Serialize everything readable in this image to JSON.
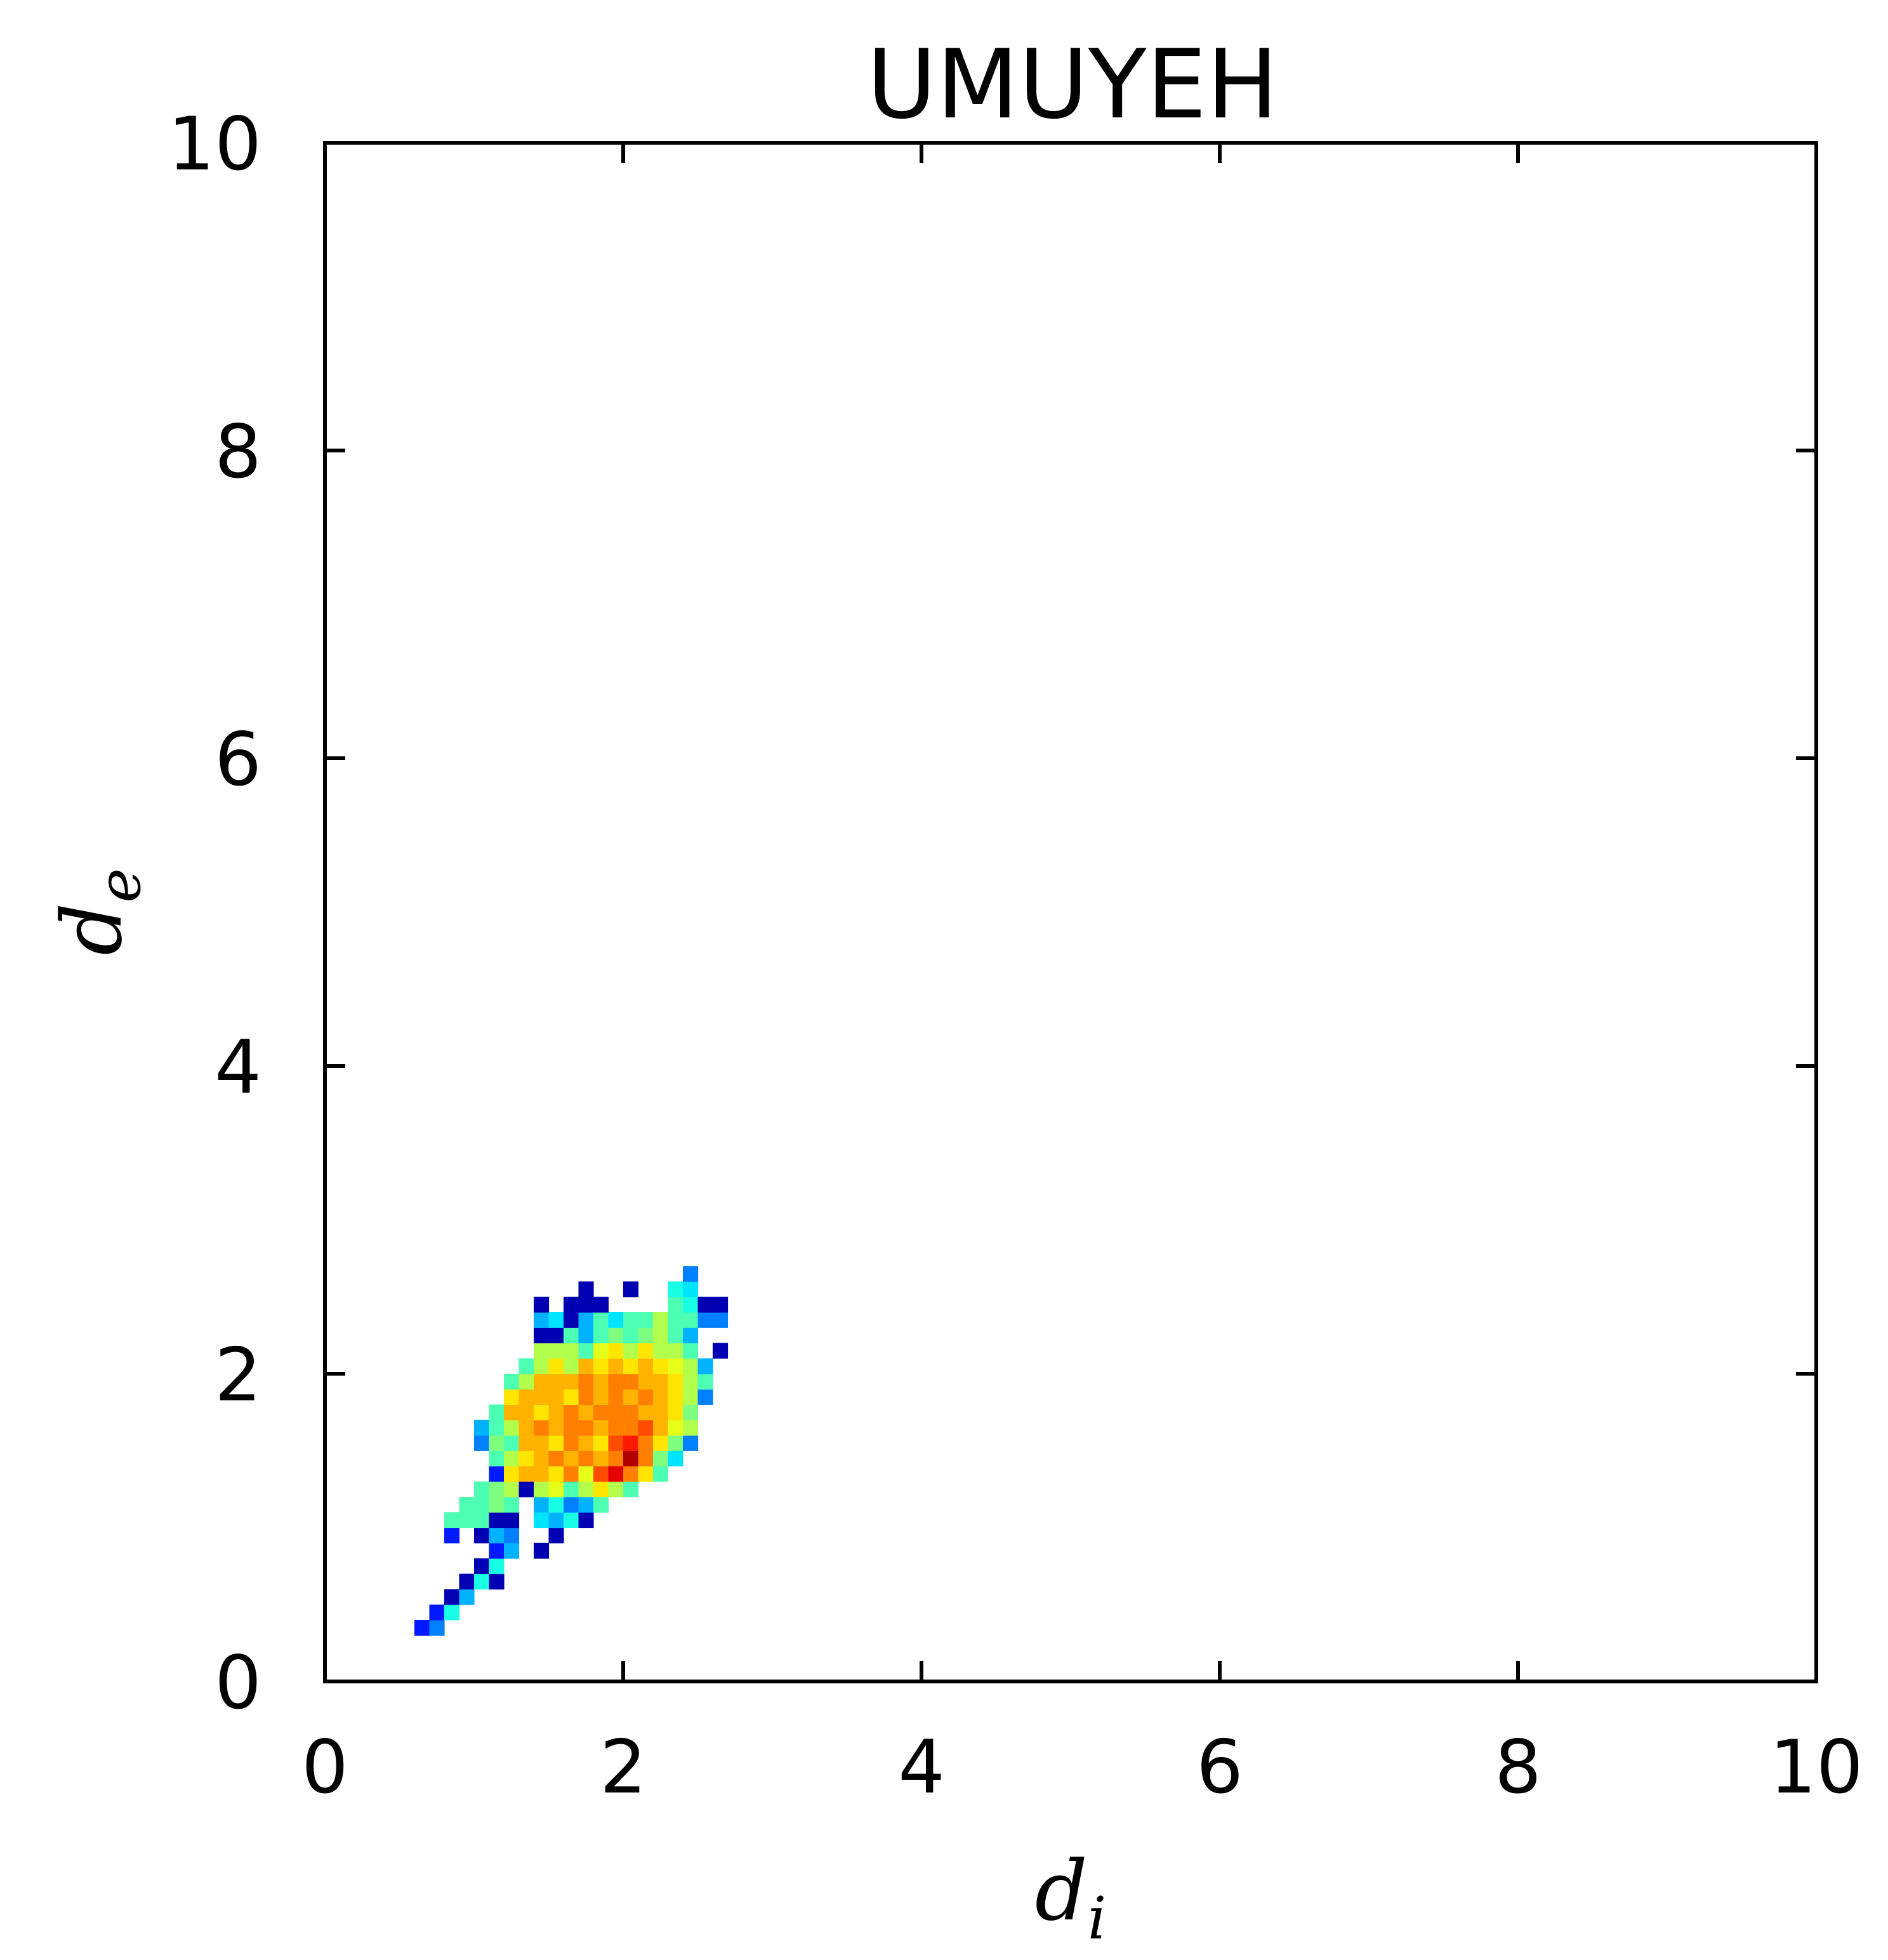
{
  "chart_data": {
    "type": "heatmap",
    "title": "UMUYEH",
    "xlabel": {
      "base": "d",
      "sub": "i"
    },
    "ylabel": {
      "base": "d",
      "sub": "e"
    },
    "xlim": [
      0,
      10
    ],
    "ylim": [
      0,
      10
    ],
    "xticks": [
      "0",
      "2",
      "4",
      "6",
      "8",
      "10"
    ],
    "yticks": [
      "0",
      "2",
      "4",
      "6",
      "8",
      "10"
    ],
    "grid": false,
    "bin_size": 0.1,
    "colormap": [
      "#00007f",
      "#0000ff",
      "#007fff",
      "#00ffff",
      "#7fff7f",
      "#ffff00",
      "#ff7f00",
      "#ff0000",
      "#7f0000"
    ],
    "cells": [
      {
        "x": 0.6,
        "y": 0.3,
        "v": 0.15
      },
      {
        "x": 0.7,
        "y": 0.3,
        "v": 0.25
      },
      {
        "x": 0.7,
        "y": 0.4,
        "v": 0.15
      },
      {
        "x": 0.8,
        "y": 0.4,
        "v": 0.4
      },
      {
        "x": 0.8,
        "y": 0.5,
        "v": 0.05
      },
      {
        "x": 0.9,
        "y": 0.5,
        "v": 0.3
      },
      {
        "x": 0.9,
        "y": 0.6,
        "v": 0.05
      },
      {
        "x": 1.0,
        "y": 0.6,
        "v": 0.4
      },
      {
        "x": 1.1,
        "y": 0.6,
        "v": 0.05
      },
      {
        "x": 1.0,
        "y": 0.7,
        "v": 0.05
      },
      {
        "x": 1.1,
        "y": 0.7,
        "v": 0.4
      },
      {
        "x": 1.1,
        "y": 0.8,
        "v": 0.15
      },
      {
        "x": 1.2,
        "y": 0.8,
        "v": 0.3
      },
      {
        "x": 1.4,
        "y": 0.8,
        "v": 0.05
      },
      {
        "x": 0.8,
        "y": 0.9,
        "v": 0.15
      },
      {
        "x": 1.0,
        "y": 0.9,
        "v": 0.05
      },
      {
        "x": 1.1,
        "y": 0.9,
        "v": 0.3
      },
      {
        "x": 1.2,
        "y": 0.9,
        "v": 0.25
      },
      {
        "x": 1.5,
        "y": 0.9,
        "v": 0.05
      },
      {
        "x": 0.8,
        "y": 1.0,
        "v": 0.45
      },
      {
        "x": 0.9,
        "y": 1.0,
        "v": 0.45
      },
      {
        "x": 1.0,
        "y": 1.0,
        "v": 0.45
      },
      {
        "x": 1.1,
        "y": 1.0,
        "v": 0.05
      },
      {
        "x": 1.2,
        "y": 1.0,
        "v": 0.05
      },
      {
        "x": 1.4,
        "y": 1.0,
        "v": 0.35
      },
      {
        "x": 1.5,
        "y": 1.0,
        "v": 0.3
      },
      {
        "x": 1.6,
        "y": 1.0,
        "v": 0.4
      },
      {
        "x": 1.7,
        "y": 1.0,
        "v": 0.05
      },
      {
        "x": 0.9,
        "y": 1.1,
        "v": 0.45
      },
      {
        "x": 1.0,
        "y": 1.1,
        "v": 0.45
      },
      {
        "x": 1.1,
        "y": 1.1,
        "v": 0.5
      },
      {
        "x": 1.2,
        "y": 1.1,
        "v": 0.45
      },
      {
        "x": 1.4,
        "y": 1.1,
        "v": 0.3
      },
      {
        "x": 1.5,
        "y": 1.1,
        "v": 0.4
      },
      {
        "x": 1.6,
        "y": 1.1,
        "v": 0.25
      },
      {
        "x": 1.7,
        "y": 1.1,
        "v": 0.3
      },
      {
        "x": 1.8,
        "y": 1.1,
        "v": 0.45
      },
      {
        "x": 1.0,
        "y": 1.2,
        "v": 0.45
      },
      {
        "x": 1.1,
        "y": 1.2,
        "v": 0.5
      },
      {
        "x": 1.2,
        "y": 1.2,
        "v": 0.55
      },
      {
        "x": 1.3,
        "y": 1.2,
        "v": 0.05
      },
      {
        "x": 1.4,
        "y": 1.2,
        "v": 0.55
      },
      {
        "x": 1.5,
        "y": 1.2,
        "v": 0.6
      },
      {
        "x": 1.6,
        "y": 1.2,
        "v": 0.45
      },
      {
        "x": 1.7,
        "y": 1.2,
        "v": 0.55
      },
      {
        "x": 1.8,
        "y": 1.2,
        "v": 0.65
      },
      {
        "x": 1.9,
        "y": 1.2,
        "v": 0.55
      },
      {
        "x": 2.0,
        "y": 1.2,
        "v": 0.45
      },
      {
        "x": 1.1,
        "y": 1.3,
        "v": 0.15
      },
      {
        "x": 1.2,
        "y": 1.3,
        "v": 0.65
      },
      {
        "x": 1.3,
        "y": 1.3,
        "v": 0.7
      },
      {
        "x": 1.4,
        "y": 1.3,
        "v": 0.7
      },
      {
        "x": 1.5,
        "y": 1.3,
        "v": 0.65
      },
      {
        "x": 1.6,
        "y": 1.3,
        "v": 0.75
      },
      {
        "x": 1.7,
        "y": 1.3,
        "v": 0.6
      },
      {
        "x": 1.8,
        "y": 1.3,
        "v": 0.8
      },
      {
        "x": 1.9,
        "y": 1.3,
        "v": 0.9
      },
      {
        "x": 2.0,
        "y": 1.3,
        "v": 0.75
      },
      {
        "x": 2.1,
        "y": 1.3,
        "v": 0.65
      },
      {
        "x": 2.2,
        "y": 1.3,
        "v": 0.45
      },
      {
        "x": 1.1,
        "y": 1.4,
        "v": 0.45
      },
      {
        "x": 1.2,
        "y": 1.4,
        "v": 0.55
      },
      {
        "x": 1.3,
        "y": 1.4,
        "v": 0.65
      },
      {
        "x": 1.4,
        "y": 1.4,
        "v": 0.7
      },
      {
        "x": 1.5,
        "y": 1.4,
        "v": 0.75
      },
      {
        "x": 1.6,
        "y": 1.4,
        "v": 0.7
      },
      {
        "x": 1.7,
        "y": 1.4,
        "v": 0.75
      },
      {
        "x": 1.8,
        "y": 1.4,
        "v": 0.7
      },
      {
        "x": 1.9,
        "y": 1.4,
        "v": 0.75
      },
      {
        "x": 2.0,
        "y": 1.4,
        "v": 0.95
      },
      {
        "x": 2.1,
        "y": 1.4,
        "v": 0.75
      },
      {
        "x": 2.2,
        "y": 1.4,
        "v": 0.5
      },
      {
        "x": 2.3,
        "y": 1.4,
        "v": 0.35
      },
      {
        "x": 1.0,
        "y": 1.5,
        "v": 0.25
      },
      {
        "x": 1.1,
        "y": 1.5,
        "v": 0.5
      },
      {
        "x": 1.2,
        "y": 1.5,
        "v": 0.45
      },
      {
        "x": 1.3,
        "y": 1.5,
        "v": 0.7
      },
      {
        "x": 1.4,
        "y": 1.5,
        "v": 0.7
      },
      {
        "x": 1.5,
        "y": 1.5,
        "v": 0.65
      },
      {
        "x": 1.6,
        "y": 1.5,
        "v": 0.75
      },
      {
        "x": 1.7,
        "y": 1.5,
        "v": 0.7
      },
      {
        "x": 1.8,
        "y": 1.5,
        "v": 0.65
      },
      {
        "x": 1.9,
        "y": 1.5,
        "v": 0.8
      },
      {
        "x": 2.0,
        "y": 1.5,
        "v": 0.85
      },
      {
        "x": 2.1,
        "y": 1.5,
        "v": 0.75
      },
      {
        "x": 2.2,
        "y": 1.5,
        "v": 0.65
      },
      {
        "x": 2.3,
        "y": 1.5,
        "v": 0.5
      },
      {
        "x": 2.4,
        "y": 1.5,
        "v": 0.25
      },
      {
        "x": 1.0,
        "y": 1.6,
        "v": 0.3
      },
      {
        "x": 1.1,
        "y": 1.6,
        "v": 0.45
      },
      {
        "x": 1.2,
        "y": 1.6,
        "v": 0.55
      },
      {
        "x": 1.3,
        "y": 1.6,
        "v": 0.7
      },
      {
        "x": 1.4,
        "y": 1.6,
        "v": 0.75
      },
      {
        "x": 1.5,
        "y": 1.6,
        "v": 0.7
      },
      {
        "x": 1.6,
        "y": 1.6,
        "v": 0.75
      },
      {
        "x": 1.7,
        "y": 1.6,
        "v": 0.75
      },
      {
        "x": 1.8,
        "y": 1.6,
        "v": 0.7
      },
      {
        "x": 1.9,
        "y": 1.6,
        "v": 0.75
      },
      {
        "x": 2.0,
        "y": 1.6,
        "v": 0.75
      },
      {
        "x": 2.1,
        "y": 1.6,
        "v": 0.8
      },
      {
        "x": 2.2,
        "y": 1.6,
        "v": 0.7
      },
      {
        "x": 2.3,
        "y": 1.6,
        "v": 0.6
      },
      {
        "x": 2.4,
        "y": 1.6,
        "v": 0.55
      },
      {
        "x": 1.1,
        "y": 1.7,
        "v": 0.45
      },
      {
        "x": 1.2,
        "y": 1.7,
        "v": 0.7
      },
      {
        "x": 1.3,
        "y": 1.7,
        "v": 0.7
      },
      {
        "x": 1.4,
        "y": 1.7,
        "v": 0.65
      },
      {
        "x": 1.5,
        "y": 1.7,
        "v": 0.7
      },
      {
        "x": 1.6,
        "y": 1.7,
        "v": 0.75
      },
      {
        "x": 1.7,
        "y": 1.7,
        "v": 0.7
      },
      {
        "x": 1.8,
        "y": 1.7,
        "v": 0.75
      },
      {
        "x": 1.9,
        "y": 1.7,
        "v": 0.75
      },
      {
        "x": 2.0,
        "y": 1.7,
        "v": 0.75
      },
      {
        "x": 2.1,
        "y": 1.7,
        "v": 0.7
      },
      {
        "x": 2.2,
        "y": 1.7,
        "v": 0.7
      },
      {
        "x": 2.3,
        "y": 1.7,
        "v": 0.65
      },
      {
        "x": 2.4,
        "y": 1.7,
        "v": 0.5
      },
      {
        "x": 1.2,
        "y": 1.8,
        "v": 0.65
      },
      {
        "x": 1.3,
        "y": 1.8,
        "v": 0.7
      },
      {
        "x": 1.4,
        "y": 1.8,
        "v": 0.7
      },
      {
        "x": 1.5,
        "y": 1.8,
        "v": 0.7
      },
      {
        "x": 1.6,
        "y": 1.8,
        "v": 0.65
      },
      {
        "x": 1.7,
        "y": 1.8,
        "v": 0.75
      },
      {
        "x": 1.8,
        "y": 1.8,
        "v": 0.7
      },
      {
        "x": 1.9,
        "y": 1.8,
        "v": 0.75
      },
      {
        "x": 2.0,
        "y": 1.8,
        "v": 0.7
      },
      {
        "x": 2.1,
        "y": 1.8,
        "v": 0.75
      },
      {
        "x": 2.2,
        "y": 1.8,
        "v": 0.7
      },
      {
        "x": 2.3,
        "y": 1.8,
        "v": 0.65
      },
      {
        "x": 2.4,
        "y": 1.8,
        "v": 0.55
      },
      {
        "x": 2.5,
        "y": 1.8,
        "v": 0.25
      },
      {
        "x": 1.2,
        "y": 1.9,
        "v": 0.45
      },
      {
        "x": 1.3,
        "y": 1.9,
        "v": 0.55
      },
      {
        "x": 1.4,
        "y": 1.9,
        "v": 0.7
      },
      {
        "x": 1.5,
        "y": 1.9,
        "v": 0.7
      },
      {
        "x": 1.6,
        "y": 1.9,
        "v": 0.7
      },
      {
        "x": 1.7,
        "y": 1.9,
        "v": 0.75
      },
      {
        "x": 1.8,
        "y": 1.9,
        "v": 0.7
      },
      {
        "x": 1.9,
        "y": 1.9,
        "v": 0.75
      },
      {
        "x": 2.0,
        "y": 1.9,
        "v": 0.75
      },
      {
        "x": 2.1,
        "y": 1.9,
        "v": 0.7
      },
      {
        "x": 2.2,
        "y": 1.9,
        "v": 0.7
      },
      {
        "x": 2.3,
        "y": 1.9,
        "v": 0.65
      },
      {
        "x": 2.4,
        "y": 1.9,
        "v": 0.55
      },
      {
        "x": 2.5,
        "y": 1.9,
        "v": 0.45
      },
      {
        "x": 1.3,
        "y": 2.0,
        "v": 0.45
      },
      {
        "x": 1.4,
        "y": 2.0,
        "v": 0.55
      },
      {
        "x": 1.5,
        "y": 2.0,
        "v": 0.65
      },
      {
        "x": 1.6,
        "y": 2.0,
        "v": 0.55
      },
      {
        "x": 1.7,
        "y": 2.0,
        "v": 0.7
      },
      {
        "x": 1.8,
        "y": 2.0,
        "v": 0.65
      },
      {
        "x": 1.9,
        "y": 2.0,
        "v": 0.7
      },
      {
        "x": 2.0,
        "y": 2.0,
        "v": 0.65
      },
      {
        "x": 2.1,
        "y": 2.0,
        "v": 0.7
      },
      {
        "x": 2.2,
        "y": 2.0,
        "v": 0.65
      },
      {
        "x": 2.3,
        "y": 2.0,
        "v": 0.6
      },
      {
        "x": 2.4,
        "y": 2.0,
        "v": 0.55
      },
      {
        "x": 2.5,
        "y": 2.0,
        "v": 0.3
      },
      {
        "x": 1.4,
        "y": 2.1,
        "v": 0.55
      },
      {
        "x": 1.5,
        "y": 2.1,
        "v": 0.55
      },
      {
        "x": 1.6,
        "y": 2.1,
        "v": 0.55
      },
      {
        "x": 1.7,
        "y": 2.1,
        "v": 0.45
      },
      {
        "x": 1.8,
        "y": 2.1,
        "v": 0.6
      },
      {
        "x": 1.9,
        "y": 2.1,
        "v": 0.65
      },
      {
        "x": 2.0,
        "y": 2.1,
        "v": 0.55
      },
      {
        "x": 2.1,
        "y": 2.1,
        "v": 0.65
      },
      {
        "x": 2.2,
        "y": 2.1,
        "v": 0.55
      },
      {
        "x": 2.3,
        "y": 2.1,
        "v": 0.55
      },
      {
        "x": 2.4,
        "y": 2.1,
        "v": 0.45
      },
      {
        "x": 2.6,
        "y": 2.1,
        "v": 0.05
      },
      {
        "x": 1.4,
        "y": 2.2,
        "v": 0.05
      },
      {
        "x": 1.5,
        "y": 2.2,
        "v": 0.05
      },
      {
        "x": 1.6,
        "y": 2.2,
        "v": 0.45
      },
      {
        "x": 1.7,
        "y": 2.2,
        "v": 0.3
      },
      {
        "x": 1.8,
        "y": 2.2,
        "v": 0.45
      },
      {
        "x": 1.9,
        "y": 2.2,
        "v": 0.5
      },
      {
        "x": 2.0,
        "y": 2.2,
        "v": 0.45
      },
      {
        "x": 2.1,
        "y": 2.2,
        "v": 0.5
      },
      {
        "x": 2.2,
        "y": 2.2,
        "v": 0.55
      },
      {
        "x": 2.3,
        "y": 2.2,
        "v": 0.45
      },
      {
        "x": 2.4,
        "y": 2.2,
        "v": 0.3
      },
      {
        "x": 1.4,
        "y": 2.3,
        "v": 0.3
      },
      {
        "x": 1.5,
        "y": 2.3,
        "v": 0.35
      },
      {
        "x": 1.6,
        "y": 2.3,
        "v": 0.05
      },
      {
        "x": 1.7,
        "y": 2.3,
        "v": 0.3
      },
      {
        "x": 1.8,
        "y": 2.3,
        "v": 0.45
      },
      {
        "x": 1.9,
        "y": 2.3,
        "v": 0.35
      },
      {
        "x": 2.0,
        "y": 2.3,
        "v": 0.45
      },
      {
        "x": 2.1,
        "y": 2.3,
        "v": 0.45
      },
      {
        "x": 2.2,
        "y": 2.3,
        "v": 0.55
      },
      {
        "x": 2.3,
        "y": 2.3,
        "v": 0.45
      },
      {
        "x": 2.4,
        "y": 2.3,
        "v": 0.45
      },
      {
        "x": 2.5,
        "y": 2.3,
        "v": 0.25
      },
      {
        "x": 2.6,
        "y": 2.3,
        "v": 0.25
      },
      {
        "x": 1.4,
        "y": 2.4,
        "v": 0.05
      },
      {
        "x": 1.6,
        "y": 2.4,
        "v": 0.05
      },
      {
        "x": 1.7,
        "y": 2.4,
        "v": 0.05
      },
      {
        "x": 1.8,
        "y": 2.4,
        "v": 0.05
      },
      {
        "x": 2.3,
        "y": 2.4,
        "v": 0.45
      },
      {
        "x": 2.4,
        "y": 2.4,
        "v": 0.4
      },
      {
        "x": 2.5,
        "y": 2.4,
        "v": 0.05
      },
      {
        "x": 2.6,
        "y": 2.4,
        "v": 0.05
      },
      {
        "x": 1.7,
        "y": 2.5,
        "v": 0.05
      },
      {
        "x": 2.0,
        "y": 2.5,
        "v": 0.05
      },
      {
        "x": 2.3,
        "y": 2.5,
        "v": 0.4
      },
      {
        "x": 2.4,
        "y": 2.5,
        "v": 0.35
      },
      {
        "x": 2.4,
        "y": 2.6,
        "v": 0.25
      }
    ]
  }
}
